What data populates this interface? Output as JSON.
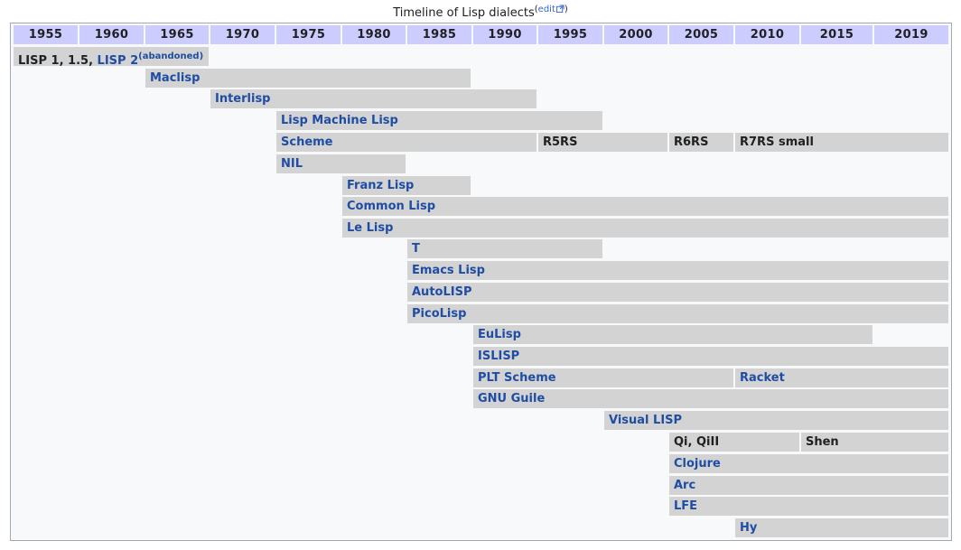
{
  "caption": {
    "title": "Timeline of Lisp dialects",
    "paren_open": "(",
    "edit": "edit",
    "paren_close": ")"
  },
  "years": [
    "1955",
    "1960",
    "1965",
    "1970",
    "1975",
    "1980",
    "1985",
    "1990",
    "1995",
    "2000",
    "2005",
    "2010",
    "2015",
    "2019"
  ],
  "rows": [
    {
      "lisp1_text": "LISP 1, 1.5, ",
      "lisp2_label": "LISP 2",
      "abandoned": "(abandoned)"
    },
    {
      "label": "Maclisp"
    },
    {
      "label": "Interlisp"
    },
    {
      "label": "Lisp Machine Lisp"
    },
    {
      "label": "Scheme",
      "r5": "R5RS",
      "r6": "R6RS",
      "r7": "R7RS small"
    },
    {
      "label": "NIL"
    },
    {
      "label": "Franz Lisp"
    },
    {
      "label": "Common Lisp"
    },
    {
      "label": "Le Lisp"
    },
    {
      "label": "T"
    },
    {
      "label": "Emacs Lisp"
    },
    {
      "label": "AutoLISP"
    },
    {
      "label": "PicoLisp"
    },
    {
      "label": "EuLisp"
    },
    {
      "label": "ISLISP"
    },
    {
      "label": "PLT Scheme",
      "next": "Racket"
    },
    {
      "label": "GNU Guile"
    },
    {
      "label": "Visual LISP"
    },
    {
      "label": "Qi, QiII",
      "next": "Shen"
    },
    {
      "label": "Clojure"
    },
    {
      "label": "Arc"
    },
    {
      "label": "LFE"
    },
    {
      "label": "Hy"
    }
  ]
}
